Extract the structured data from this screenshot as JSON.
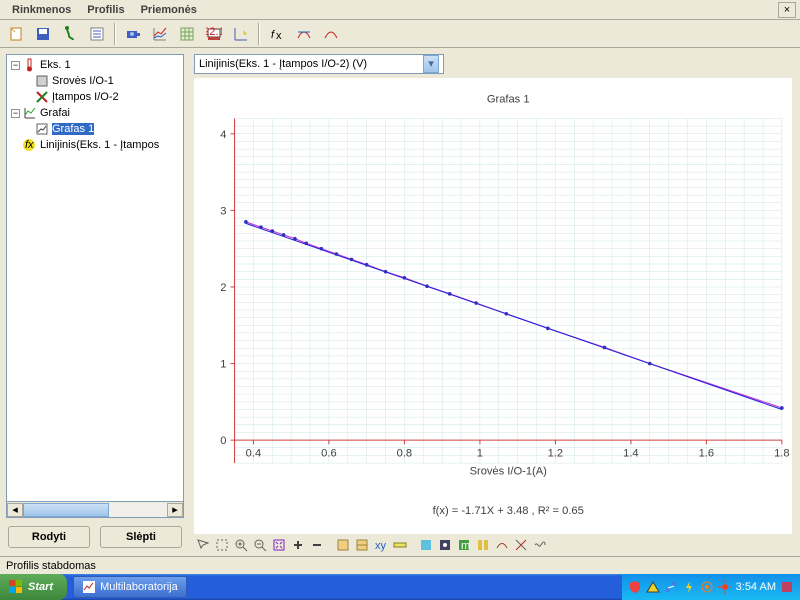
{
  "menu": {
    "items": [
      "Rinkmenos",
      "Profilis",
      "Priemonės"
    ]
  },
  "tree": {
    "n0": "Eks. 1",
    "n1": "Srovės I/O-1",
    "n2": "Įtampos I/O-2",
    "n3": "Grafai",
    "n4": "Grafas 1",
    "n5": "Linijinis(Eks. 1 - Įtampos"
  },
  "buttons": {
    "show": "Rodyti",
    "hide": "Slėpti"
  },
  "dropdown": "Linijinis(Eks. 1 - Įtampos I/O-2) (V)",
  "chart": {
    "title": "Grafas 1",
    "xlabel": "Srovės I/O-1(A)",
    "equation": "f(x) = -1.71X + 3.48 ,  R² = 0.65",
    "xlim": [
      0.35,
      1.8
    ],
    "ylim": [
      -0.3,
      4.2
    ],
    "xticks": [
      0.4,
      0.6,
      0.8,
      1.0,
      1.2,
      1.4,
      1.6,
      1.8
    ],
    "yticks": [
      0,
      1,
      2,
      3,
      4
    ],
    "grid_color": "#d0e6e6",
    "axis_color": "#d04040",
    "line_color": "#c040d0",
    "fit_color": "#2020e0",
    "marker_color": "#3030c0",
    "points": [
      [
        0.38,
        2.85
      ],
      [
        0.42,
        2.78
      ],
      [
        0.45,
        2.73
      ],
      [
        0.48,
        2.68
      ],
      [
        0.51,
        2.63
      ],
      [
        0.54,
        2.57
      ],
      [
        0.58,
        2.5
      ],
      [
        0.62,
        2.43
      ],
      [
        0.66,
        2.36
      ],
      [
        0.7,
        2.29
      ],
      [
        0.75,
        2.2
      ],
      [
        0.8,
        2.12
      ],
      [
        0.86,
        2.01
      ],
      [
        0.92,
        1.91
      ],
      [
        0.99,
        1.79
      ],
      [
        1.07,
        1.65
      ],
      [
        1.18,
        1.46
      ],
      [
        1.33,
        1.21
      ],
      [
        1.45,
        1.0
      ],
      [
        1.8,
        0.42
      ]
    ],
    "fit": [
      [
        0.38,
        2.83
      ],
      [
        1.8,
        0.4
      ]
    ]
  },
  "status": "Profilis stabdomas",
  "taskbar": {
    "start": "Start",
    "task": "Multilaboratorija",
    "time": "3:54 AM"
  }
}
